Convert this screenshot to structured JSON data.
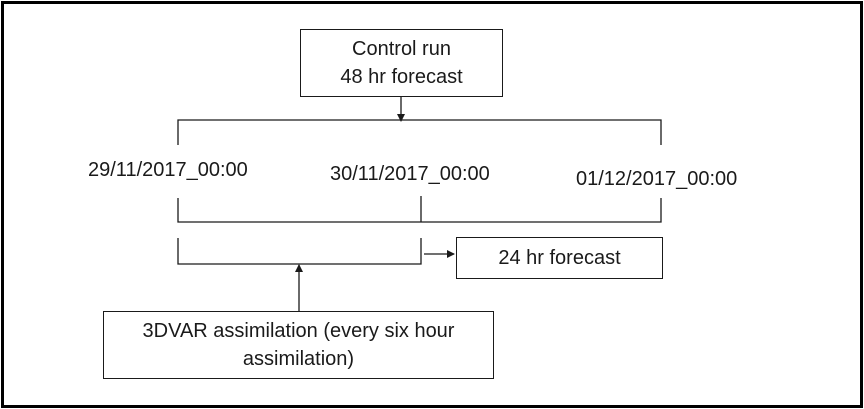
{
  "control_run": {
    "line1": "Control run",
    "line2": "48 hr forecast"
  },
  "dates": [
    "29/11/2017_00:00",
    "30/11/2017_00:00",
    "01/12/2017_00:00"
  ],
  "forecast_24": {
    "label": "24 hr forecast"
  },
  "assimilation": {
    "line1": "3DVAR assimilation (every six hour",
    "line2": "assimilation)"
  }
}
